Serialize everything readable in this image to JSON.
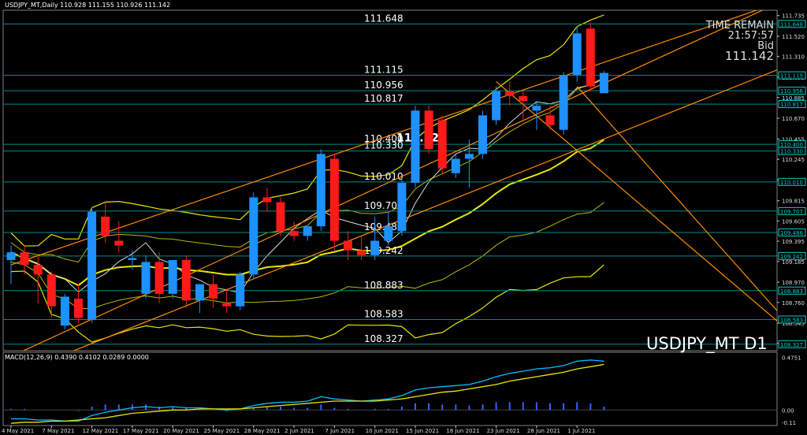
{
  "header": {
    "symbol_info": "USDJPY_MT,Daily",
    "ohlc": "110.928 111.155 110.926 111.142"
  },
  "macd_header": "MACD(12,26,9) 0.4390 0.4102 0.0289 0.0000",
  "time_remain": {
    "label": "TIME REMAIN",
    "value": "21:57:57",
    "bid_label": "Bid",
    "bid_value": "111.142"
  },
  "symbol_label": "USDJPY_MT D1",
  "center_label": "110.523",
  "colors": {
    "bull": "#1e90ff",
    "bear": "#ff1a1a",
    "level_line": "#008b8b",
    "bollinger": "#e6e600",
    "ma": "#d9d9d9",
    "trendline": "#ff8c00",
    "macd_line": "#00bfff",
    "signal_line": "#e6e600",
    "price_tag": "#00cccc"
  },
  "chart_data": {
    "type": "candlestick",
    "yaxis_ticks": [
      "111.735",
      "111.520",
      "111.310",
      "111.095",
      "110.885",
      "110.670",
      "110.455",
      "110.245",
      "110.030",
      "109.815",
      "109.605",
      "109.395",
      "109.185",
      "108.970",
      "108.760",
      "108.545",
      "108.335"
    ],
    "ylim": [
      108.26,
      111.79
    ],
    "x_ticks": [
      {
        "label": "4 May 2021",
        "i": 0
      },
      {
        "label": "7 May 2021",
        "i": 3
      },
      {
        "label": "12 May 2021",
        "i": 6
      },
      {
        "label": "17 May 2021",
        "i": 9
      },
      {
        "label": "20 May 2021",
        "i": 12
      },
      {
        "label": "25 May 2021",
        "i": 15
      },
      {
        "label": "28 May 2021",
        "i": 18
      },
      {
        "label": "2 Jun 2021",
        "i": 21
      },
      {
        "label": "7 Jun 2021",
        "i": 24
      },
      {
        "label": "10 Jun 2021",
        "i": 27
      },
      {
        "label": "15 Jun 2021",
        "i": 30
      },
      {
        "label": "18 Jun 2021",
        "i": 33
      },
      {
        "label": "23 Jun 2021",
        "i": 36
      },
      {
        "label": "28 Jun 2021",
        "i": 39
      },
      {
        "label": "1 Jul 2021",
        "i": 42
      }
    ],
    "candles": [
      {
        "o": 109.2,
        "h": 109.35,
        "l": 108.95,
        "c": 109.28
      },
      {
        "o": 109.28,
        "h": 109.35,
        "l": 109.05,
        "c": 109.15
      },
      {
        "o": 109.15,
        "h": 109.25,
        "l": 108.75,
        "c": 109.05
      },
      {
        "o": 109.05,
        "h": 109.08,
        "l": 108.6,
        "c": 108.72
      },
      {
        "o": 108.52,
        "h": 108.85,
        "l": 108.48,
        "c": 108.82
      },
      {
        "o": 108.8,
        "h": 108.95,
        "l": 108.55,
        "c": 108.6
      },
      {
        "o": 108.58,
        "h": 109.75,
        "l": 108.55,
        "c": 109.7
      },
      {
        "o": 109.65,
        "h": 109.8,
        "l": 109.38,
        "c": 109.45
      },
      {
        "o": 109.4,
        "h": 109.6,
        "l": 109.28,
        "c": 109.35
      },
      {
        "o": 109.2,
        "h": 109.3,
        "l": 109.1,
        "c": 109.22
      },
      {
        "o": 108.85,
        "h": 109.25,
        "l": 108.8,
        "c": 109.18
      },
      {
        "o": 109.18,
        "h": 109.28,
        "l": 108.75,
        "c": 108.85
      },
      {
        "o": 108.85,
        "h": 109.2,
        "l": 108.8,
        "c": 109.2
      },
      {
        "o": 109.2,
        "h": 109.25,
        "l": 108.7,
        "c": 108.78
      },
      {
        "o": 108.78,
        "h": 108.95,
        "l": 108.65,
        "c": 108.95
      },
      {
        "o": 108.95,
        "h": 109.05,
        "l": 108.7,
        "c": 108.8
      },
      {
        "o": 108.75,
        "h": 108.9,
        "l": 108.65,
        "c": 108.72
      },
      {
        "o": 108.72,
        "h": 109.08,
        "l": 108.68,
        "c": 109.05
      },
      {
        "o": 109.05,
        "h": 109.9,
        "l": 109.0,
        "c": 109.85
      },
      {
        "o": 109.85,
        "h": 109.95,
        "l": 109.7,
        "c": 109.8
      },
      {
        "o": 109.8,
        "h": 109.85,
        "l": 109.45,
        "c": 109.5
      },
      {
        "o": 109.5,
        "h": 109.6,
        "l": 109.4,
        "c": 109.45
      },
      {
        "o": 109.45,
        "h": 109.55,
        "l": 109.4,
        "c": 109.55
      },
      {
        "o": 109.55,
        "h": 110.35,
        "l": 109.5,
        "c": 110.3
      },
      {
        "o": 110.25,
        "h": 110.3,
        "l": 109.3,
        "c": 109.4
      },
      {
        "o": 109.4,
        "h": 109.5,
        "l": 109.2,
        "c": 109.3
      },
      {
        "o": 109.3,
        "h": 109.45,
        "l": 109.2,
        "c": 109.25
      },
      {
        "o": 109.25,
        "h": 109.65,
        "l": 109.2,
        "c": 109.4
      },
      {
        "o": 109.4,
        "h": 109.7,
        "l": 109.35,
        "c": 109.55
      },
      {
        "o": 109.5,
        "h": 110.05,
        "l": 109.45,
        "c": 110.0
      },
      {
        "o": 110.0,
        "h": 110.8,
        "l": 109.95,
        "c": 110.75
      },
      {
        "o": 110.75,
        "h": 110.8,
        "l": 110.3,
        "c": 110.35
      },
      {
        "o": 110.65,
        "h": 110.7,
        "l": 110.1,
        "c": 110.15
      },
      {
        "o": 110.1,
        "h": 110.3,
        "l": 110.05,
        "c": 110.25
      },
      {
        "o": 110.25,
        "h": 110.45,
        "l": 109.95,
        "c": 110.3
      },
      {
        "o": 110.3,
        "h": 110.75,
        "l": 110.25,
        "c": 110.7
      },
      {
        "o": 110.65,
        "h": 111.0,
        "l": 110.6,
        "c": 110.95
      },
      {
        "o": 110.95,
        "h": 111.05,
        "l": 110.8,
        "c": 110.9
      },
      {
        "o": 110.9,
        "h": 110.95,
        "l": 110.65,
        "c": 110.85
      },
      {
        "o": 110.75,
        "h": 110.85,
        "l": 110.55,
        "c": 110.8
      },
      {
        "o": 110.7,
        "h": 110.8,
        "l": 110.55,
        "c": 110.6
      },
      {
        "o": 110.55,
        "h": 111.15,
        "l": 110.5,
        "c": 111.12
      },
      {
        "o": 111.12,
        "h": 111.63,
        "l": 111.05,
        "c": 111.55
      },
      {
        "o": 111.6,
        "h": 111.66,
        "l": 110.95,
        "c": 111.0
      },
      {
        "o": 110.93,
        "h": 111.16,
        "l": 110.93,
        "c": 111.14
      }
    ],
    "levels": [
      {
        "value": 111.648,
        "label": "111.648"
      },
      {
        "value": 111.115,
        "label": "111.115"
      },
      {
        "value": 110.956,
        "label": "110.956"
      },
      {
        "value": 110.817,
        "label": "110.817"
      },
      {
        "value": 110.4,
        "label": "110.400"
      },
      {
        "value": 110.33,
        "label": "110.330"
      },
      {
        "value": 110.01,
        "label": "110.010"
      },
      {
        "value": 109.707,
        "label": "109.707"
      },
      {
        "value": 109.486,
        "label": "109.486"
      },
      {
        "value": 109.242,
        "label": "109.242"
      },
      {
        "value": 108.883,
        "label": "108.883"
      },
      {
        "value": 108.583,
        "label": "108.583"
      },
      {
        "value": 108.327,
        "label": "108.327"
      }
    ],
    "price_tags": [
      {
        "value": 111.648,
        "label": "111.648"
      },
      {
        "value": 111.115,
        "label": "111.115"
      },
      {
        "value": 110.956,
        "label": "110.956"
      },
      {
        "value": 110.817,
        "label": "110.817"
      },
      {
        "value": 110.4,
        "label": "110.400"
      },
      {
        "value": 110.33,
        "label": "110.330"
      },
      {
        "value": 110.01,
        "label": "110.010"
      },
      {
        "value": 109.707,
        "label": "109.707"
      },
      {
        "value": 109.486,
        "label": "109.486"
      },
      {
        "value": 109.242,
        "label": "109.242"
      },
      {
        "value": 108.883,
        "label": "108.883"
      },
      {
        "value": 108.583,
        "label": "108.583"
      },
      {
        "value": 108.327,
        "label": "108.327"
      }
    ],
    "trendlines": [
      {
        "from": [
          0,
          108.2
        ],
        "to": [
          57,
          111.87
        ]
      },
      {
        "from": [
          0,
          109.15
        ],
        "to": [
          57,
          111.87
        ]
      },
      {
        "from": [
          0,
          108.0
        ],
        "to": [
          57,
          111.18
        ]
      },
      {
        "from": [
          36,
          111.05
        ],
        "to": [
          57,
          108.55
        ]
      },
      {
        "from": [
          42,
          111.0
        ],
        "to": [
          57,
          108.65
        ]
      }
    ],
    "macd": {
      "ylim": [
        -0.14,
        0.52
      ],
      "yaxis_ticks": [
        "0.4751",
        "0.00",
        "-0.11"
      ],
      "zero": 0.0,
      "macd_line": [
        -0.08,
        -0.08,
        -0.09,
        -0.09,
        -0.1,
        -0.1,
        -0.05,
        -0.02,
        0.0,
        0.02,
        0.03,
        0.02,
        0.03,
        0.02,
        0.02,
        0.01,
        0.0,
        0.01,
        0.04,
        0.06,
        0.07,
        0.07,
        0.08,
        0.12,
        0.1,
        0.09,
        0.08,
        0.09,
        0.1,
        0.13,
        0.18,
        0.2,
        0.21,
        0.22,
        0.23,
        0.26,
        0.3,
        0.33,
        0.35,
        0.37,
        0.38,
        0.4,
        0.44,
        0.45,
        0.44
      ],
      "signal_line": [
        -0.12,
        -0.11,
        -0.11,
        -0.1,
        -0.1,
        -0.09,
        -0.08,
        -0.07,
        -0.05,
        -0.03,
        -0.02,
        -0.01,
        0.0,
        0.0,
        0.01,
        0.01,
        0.01,
        0.01,
        0.02,
        0.03,
        0.04,
        0.05,
        0.06,
        0.07,
        0.08,
        0.08,
        0.08,
        0.08,
        0.09,
        0.1,
        0.12,
        0.14,
        0.16,
        0.17,
        0.19,
        0.21,
        0.23,
        0.26,
        0.28,
        0.3,
        0.32,
        0.34,
        0.37,
        0.39,
        0.41
      ],
      "histogram": [
        0.01,
        0.01,
        0.0,
        0.0,
        0.0,
        -0.01,
        0.03,
        0.05,
        0.05,
        0.05,
        0.05,
        0.03,
        0.03,
        0.02,
        0.01,
        0.0,
        -0.01,
        0.0,
        0.02,
        0.03,
        0.03,
        0.02,
        0.02,
        0.05,
        0.02,
        0.01,
        0.0,
        0.01,
        0.01,
        0.03,
        0.06,
        0.06,
        0.05,
        0.05,
        0.04,
        0.05,
        0.07,
        0.07,
        0.07,
        0.07,
        0.06,
        0.06,
        0.07,
        0.06,
        0.03
      ]
    }
  }
}
